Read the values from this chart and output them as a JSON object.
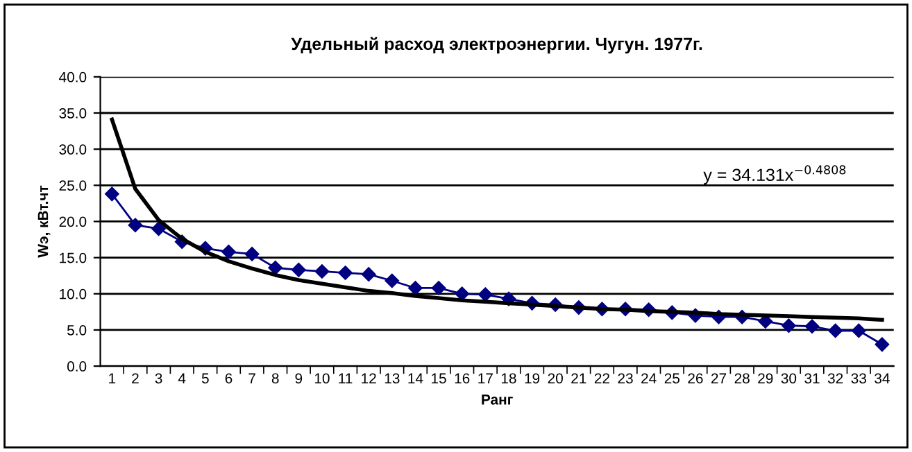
{
  "chart_data": {
    "type": "line",
    "title": "Удельный расход электроэнергии. Чугун. 1977г.",
    "xlabel": "Ранг",
    "ylabel": "Wэ, кВт.чт",
    "categories": [
      "1",
      "2",
      "3",
      "4",
      "5",
      "6",
      "7",
      "8",
      "9",
      "10",
      "11",
      "12",
      "13",
      "14",
      "15",
      "16",
      "17",
      "18",
      "19",
      "20",
      "21",
      "22",
      "23",
      "24",
      "25",
      "26",
      "27",
      "28",
      "29",
      "30",
      "31",
      "32",
      "33",
      "34"
    ],
    "series": [
      {
        "color": "#000080",
        "marker": "diamond",
        "values": [
          23.8,
          19.5,
          19.0,
          17.2,
          16.3,
          15.8,
          15.5,
          13.6,
          13.3,
          13.1,
          12.9,
          12.7,
          11.8,
          10.8,
          10.8,
          10.0,
          9.9,
          9.3,
          8.7,
          8.5,
          8.1,
          7.9,
          7.9,
          7.8,
          7.4,
          7.0,
          6.8,
          6.8,
          6.2,
          5.6,
          5.5,
          4.9,
          4.9,
          3.0
        ]
      },
      {
        "color": "#000000",
        "marker": "none",
        "values": [
          34.1,
          24.5,
          20.2,
          17.6,
          15.8,
          14.5,
          13.5,
          12.6,
          11.9,
          11.4,
          10.9,
          10.4,
          10.1,
          9.7,
          9.4,
          9.1,
          8.9,
          8.7,
          8.5,
          8.3,
          8.1,
          7.9,
          7.8,
          7.6,
          7.5,
          7.4,
          7.2,
          7.1,
          7.0,
          6.9,
          6.8,
          6.7,
          6.6,
          6.4
        ]
      }
    ],
    "ylim": [
      0,
      40
    ],
    "yticks": [
      {
        "value": 0,
        "label": "0.0"
      },
      {
        "value": 5,
        "label": "5.0"
      },
      {
        "value": 10,
        "label": "10.0"
      },
      {
        "value": 15,
        "label": "15.0"
      },
      {
        "value": 20,
        "label": "20.0"
      },
      {
        "value": 25,
        "label": "25.0"
      },
      {
        "value": 30,
        "label": "30.0"
      },
      {
        "value": 35,
        "label": "35.0"
      },
      {
        "value": 40,
        "label": "40.0"
      }
    ],
    "grid": "y",
    "legend": false,
    "line_style": "solid",
    "annotations": [
      "y = 34.131x$^{−0.4808}$"
    ]
  }
}
